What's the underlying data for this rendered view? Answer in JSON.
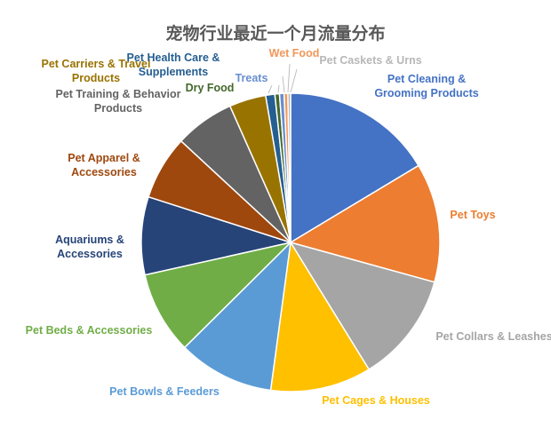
{
  "chart_data": {
    "type": "pie",
    "title": "宠物行业最近一个月流量分布",
    "legend": "none (labels beside slices)",
    "slices": [
      {
        "label": "Pet Cleaning &\nGrooming Products",
        "value": 16.5,
        "color": "#4472C4"
      },
      {
        "label": "Pet Toys",
        "value": 13.0,
        "color": "#ED7D31"
      },
      {
        "label": "Pet Collars & Leashes",
        "value": 12.0,
        "color": "#A5A5A5"
      },
      {
        "label": "Pet Cages & Houses",
        "value": 11.0,
        "color": "#FFC000"
      },
      {
        "label": "Pet Bowls & Feeders",
        "value": 10.5,
        "color": "#5B9BD5"
      },
      {
        "label": "Pet Beds & Accessories",
        "value": 9.0,
        "color": "#70AD47"
      },
      {
        "label": "Aquariums &\nAccessories",
        "value": 8.5,
        "color": "#264478"
      },
      {
        "label": "Pet Apparel &\nAccessories",
        "value": 7.0,
        "color": "#9E480E"
      },
      {
        "label": "Pet Training & Behavior\nProducts",
        "value": 6.5,
        "color": "#636363"
      },
      {
        "label": "Pet Carriers & Travel\nProducts",
        "value": 4.0,
        "color": "#997300"
      },
      {
        "label": "Pet Health Care &\nSupplements",
        "value": 1.0,
        "color": "#255E91"
      },
      {
        "label": "Dry Food",
        "value": 0.5,
        "color": "#43682B"
      },
      {
        "label": "Treats",
        "value": 0.5,
        "color": "#698ED0"
      },
      {
        "label": "Wet Food",
        "value": 0.4,
        "color": "#F1975A"
      },
      {
        "label": "Pet Caskets & Urns",
        "value": 0.3,
        "color": "#B7B7B7"
      }
    ]
  }
}
